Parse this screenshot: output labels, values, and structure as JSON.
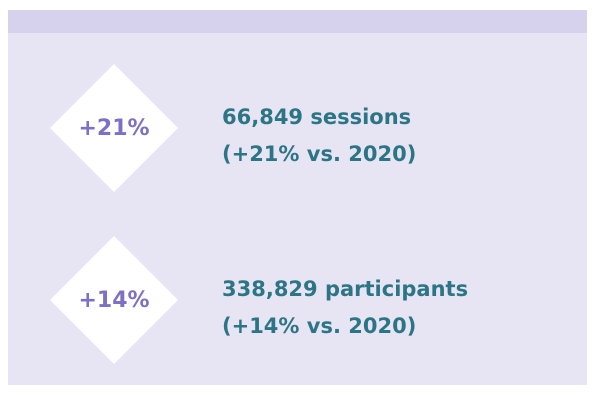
{
  "items": [
    {
      "badge": "+21%",
      "lines": [
        "66,849 sessions",
        "(+21% vs. 2020)"
      ]
    },
    {
      "badge": "+14%",
      "lines": [
        "338,829 participants",
        "(+14% vs. 2020)"
      ]
    }
  ]
}
